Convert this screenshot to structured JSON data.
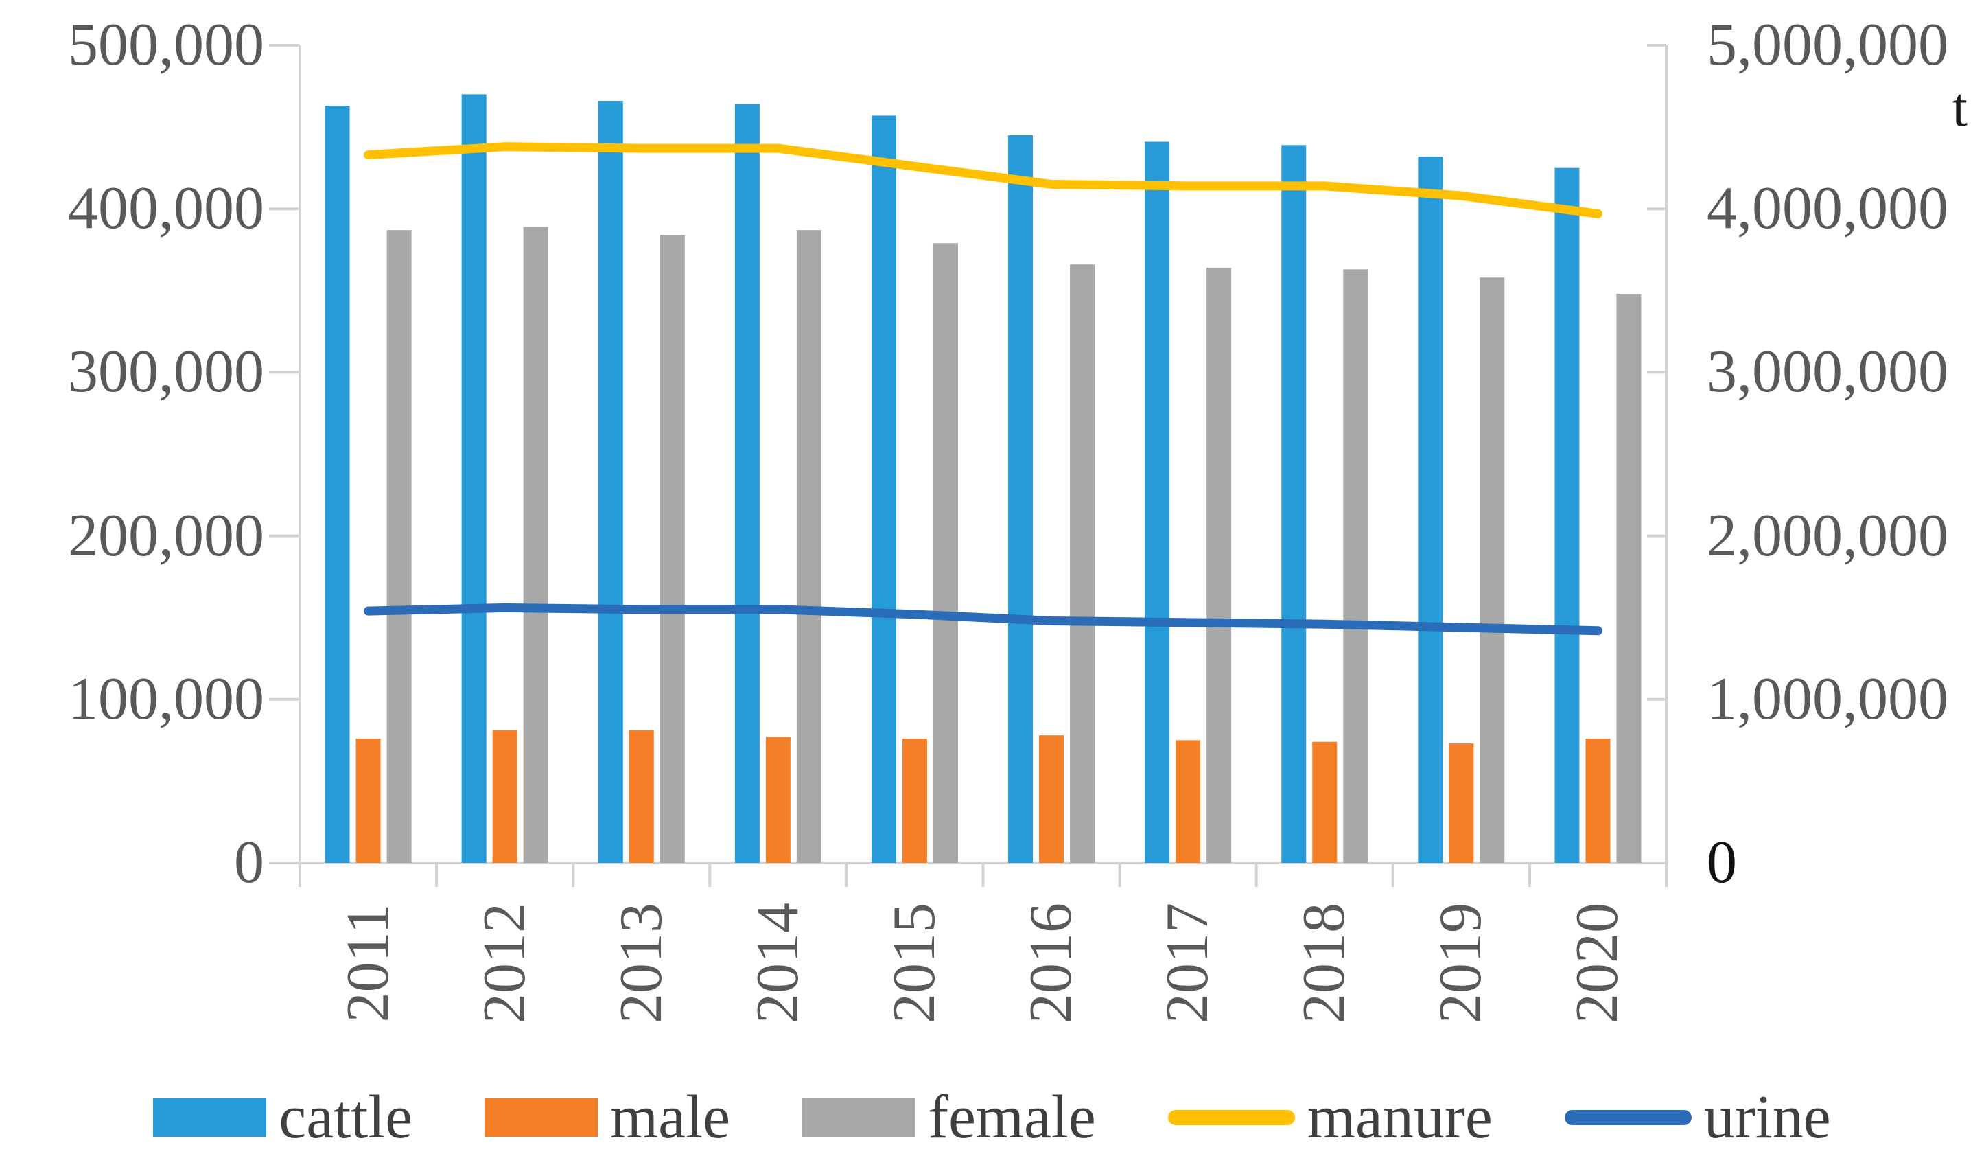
{
  "chart_data": {
    "type": "combo-bar-line",
    "title": "",
    "categories": [
      "2011",
      "2012",
      "2013",
      "2014",
      "2015",
      "2016",
      "2017",
      "2018",
      "2019",
      "2020"
    ],
    "series": [
      {
        "name": "cattle",
        "type": "bar",
        "axis": "left",
        "color": "#279BD8",
        "values": [
          463000,
          470000,
          466000,
          464000,
          457000,
          445000,
          441000,
          439000,
          432000,
          425000
        ]
      },
      {
        "name": "male",
        "type": "bar",
        "axis": "left",
        "color": "#F57F26",
        "values": [
          76000,
          81000,
          81000,
          77000,
          76000,
          78000,
          75000,
          74000,
          73000,
          76000
        ]
      },
      {
        "name": "female",
        "type": "bar",
        "axis": "left",
        "color": "#A8A8A8",
        "values": [
          387000,
          389000,
          384000,
          387000,
          379000,
          366000,
          364000,
          363000,
          358000,
          348000
        ]
      },
      {
        "name": "manure",
        "type": "line",
        "axis": "right",
        "color": "#FFC000",
        "values": [
          4330000,
          4380000,
          4370000,
          4370000,
          4260000,
          4150000,
          4140000,
          4140000,
          4080000,
          3970000
        ]
      },
      {
        "name": "urine",
        "type": "line",
        "axis": "right",
        "color": "#2B6CB8",
        "values": [
          1540000,
          1560000,
          1550000,
          1550000,
          1520000,
          1480000,
          1470000,
          1460000,
          1440000,
          1420000
        ]
      }
    ],
    "left_axis": {
      "min": 0,
      "max": 500000,
      "tick_labels": [
        "500,000",
        "400,000",
        "300,000",
        "200,000",
        "100,000",
        "0"
      ]
    },
    "right_axis": {
      "min": 0,
      "max": 5000000,
      "unit": "t",
      "tick_labels": [
        "5,000,000",
        "4,000,000",
        "3,000,000",
        "2,000,000",
        "1,000,000",
        "0"
      ]
    },
    "legend": [
      "cattle",
      "male",
      "female",
      "manure",
      "urine"
    ],
    "legend_position": "bottom",
    "grid": "off",
    "axis_line_color": "#D2D2D2"
  }
}
